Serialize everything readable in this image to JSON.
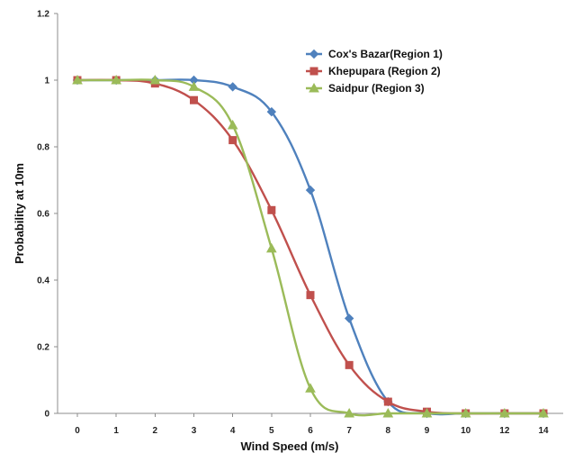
{
  "chart_data": {
    "type": "line",
    "xlabel": "Wind Speed (m/s)",
    "ylabel": "Probability at 10m",
    "x": [
      0,
      1,
      2,
      3,
      4,
      5,
      6,
      7,
      8,
      9,
      10,
      12,
      14
    ],
    "x_ticks": [
      "0",
      "1",
      "2",
      "3",
      "4",
      "5",
      "6",
      "7",
      "8",
      "9",
      "10",
      "12",
      "14"
    ],
    "y_ticks": [
      "0",
      "0.2",
      "0.4",
      "0.6",
      "0.8",
      "1",
      "1.2"
    ],
    "ylim": [
      0,
      1.2
    ],
    "grid": false,
    "legend_position": "top-right",
    "series": [
      {
        "name": "Cox's Bazar(Region 1)",
        "color": "#4f81bd",
        "marker": "diamond",
        "values": [
          1.0,
          1.0,
          1.0,
          1.0,
          0.98,
          0.905,
          0.67,
          0.285,
          0.035,
          0.0,
          0.0,
          0.0,
          0.0
        ]
      },
      {
        "name": "Khepupara (Region 2)",
        "color": "#c0504d",
        "marker": "square",
        "values": [
          1.0,
          1.0,
          0.99,
          0.94,
          0.82,
          0.61,
          0.355,
          0.145,
          0.035,
          0.005,
          0.0,
          0.0,
          0.0
        ]
      },
      {
        "name": "Saidpur (Region 3)",
        "color": "#9bbb59",
        "marker": "triangle",
        "values": [
          1.0,
          1.0,
          1.0,
          0.98,
          0.865,
          0.495,
          0.075,
          0.0,
          0.0,
          0.0,
          0.0,
          0.0,
          0.0
        ]
      }
    ]
  }
}
